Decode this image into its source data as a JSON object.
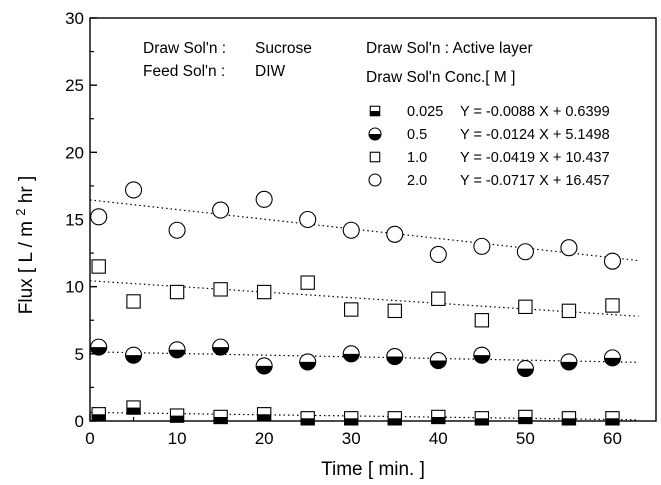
{
  "chart_data": {
    "type": "scatter",
    "xlabel": "Time [ min. ]",
    "ylabel_parts": [
      "Flux [ L / m ",
      "2",
      " hr ]"
    ],
    "xlim": [
      0,
      65
    ],
    "ylim": [
      0,
      30
    ],
    "x_ticks": [
      0,
      10,
      20,
      30,
      40,
      50,
      60
    ],
    "y_ticks": [
      0,
      5,
      10,
      15,
      20,
      25,
      30
    ],
    "grid": false,
    "annotations": {
      "draw_label": "Draw Sol'n :",
      "draw_value": "Sucrose",
      "feed_label": "Feed Sol'n :",
      "feed_value": "DIW",
      "active_layer": "Draw Sol'n : Active layer",
      "conc_title": "Draw Sol'n Conc.[ M ]"
    },
    "series": [
      {
        "name": "0.025",
        "marker": "square-half-bottom",
        "equation": "Y = -0.0088 X + 0.6399",
        "fit": {
          "slope": -0.0088,
          "intercept": 0.6399
        },
        "x": [
          1,
          5,
          10,
          15,
          20,
          25,
          30,
          35,
          40,
          45,
          50,
          55,
          60
        ],
        "values": [
          0.5,
          1.0,
          0.4,
          0.3,
          0.5,
          0.2,
          0.2,
          0.2,
          0.3,
          0.2,
          0.3,
          0.2,
          0.2
        ]
      },
      {
        "name": "0.5",
        "marker": "circle-half-bottom",
        "equation": "Y = -0.0124 X + 5.1498",
        "fit": {
          "slope": -0.0124,
          "intercept": 5.1498
        },
        "x": [
          1,
          5,
          10,
          15,
          20,
          25,
          30,
          35,
          40,
          45,
          50,
          55,
          60
        ],
        "values": [
          5.5,
          4.9,
          5.3,
          5.5,
          4.1,
          4.4,
          5.0,
          4.8,
          4.5,
          4.9,
          3.9,
          4.4,
          4.7
        ]
      },
      {
        "name": "1.0",
        "marker": "square-open",
        "equation": "Y = -0.0419 X + 10.437",
        "fit": {
          "slope": -0.0419,
          "intercept": 10.437
        },
        "x": [
          1,
          5,
          10,
          15,
          20,
          25,
          30,
          35,
          40,
          45,
          50,
          55,
          60
        ],
        "values": [
          11.5,
          8.9,
          9.6,
          9.8,
          9.6,
          10.3,
          8.3,
          8.2,
          9.1,
          7.5,
          8.5,
          8.2,
          8.6
        ]
      },
      {
        "name": "2.0",
        "marker": "circle-open",
        "equation": "Y = -0.0717 X + 16.457",
        "fit": {
          "slope": -0.0717,
          "intercept": 16.457
        },
        "x": [
          1,
          5,
          10,
          15,
          20,
          25,
          30,
          35,
          40,
          45,
          50,
          55,
          60
        ],
        "values": [
          15.2,
          17.2,
          14.2,
          15.7,
          16.5,
          15.0,
          14.2,
          13.9,
          12.4,
          13.0,
          12.6,
          12.9,
          11.9
        ]
      }
    ]
  }
}
